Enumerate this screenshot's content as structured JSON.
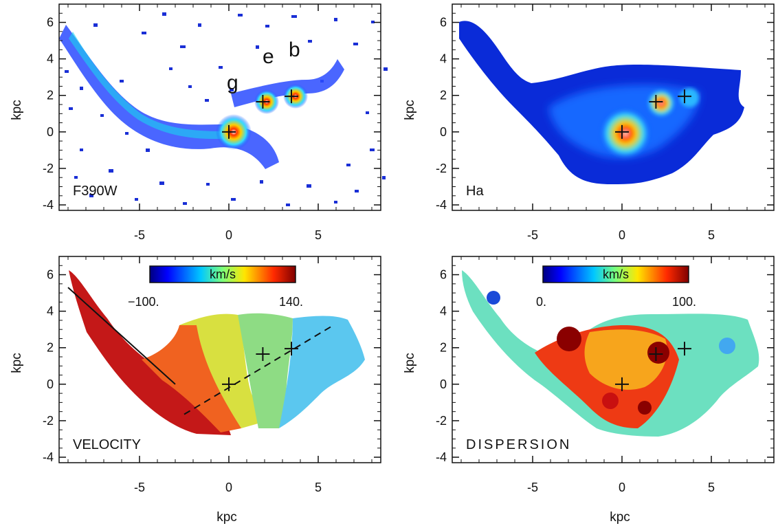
{
  "panels": [
    {
      "id": "f390w",
      "label": "F390W",
      "xlabel": "",
      "ylabel": "kpc",
      "knot_labels": [
        "g",
        "e",
        "b"
      ],
      "colorbar": null
    },
    {
      "id": "ha",
      "label": "Ha",
      "xlabel": "",
      "ylabel": "kpc",
      "knot_labels": [],
      "colorbar": null
    },
    {
      "id": "velocity",
      "label": "VELOCITY",
      "xlabel": "kpc",
      "ylabel": "kpc",
      "knot_labels": [],
      "colorbar": {
        "title": "km/s",
        "min_label": "−100.",
        "max_label": "140.",
        "min": -100,
        "max": 140,
        "scheme": "jet"
      }
    },
    {
      "id": "dispersion",
      "label": "DISPERSION",
      "xlabel": "kpc",
      "ylabel": "kpc",
      "knot_labels": [],
      "colorbar": {
        "title": "km/s",
        "min_label": "0.",
        "max_label": "100.",
        "min": 0,
        "max": 100,
        "scheme": "jet"
      }
    }
  ],
  "axes": {
    "xlim": [
      -9.5,
      8.5
    ],
    "ylim": [
      -4.3,
      7.0
    ],
    "xticks": [
      -5,
      0,
      5
    ],
    "xtick_labels": [
      "-5",
      "0",
      "5"
    ],
    "yticks": [
      -4,
      -2,
      0,
      2,
      4,
      6
    ],
    "ytick_labels": [
      "-4",
      "-2",
      "0",
      "2",
      "4",
      "6"
    ]
  },
  "markers": [
    {
      "x": 0.0,
      "y": 0.0
    },
    {
      "x": 1.9,
      "y": 1.65
    },
    {
      "x": 3.5,
      "y": 1.95
    }
  ],
  "kinematic_axes": {
    "solid": {
      "from": [
        -9.0,
        5.3
      ],
      "to": [
        -3.0,
        0.0
      ]
    },
    "dashed": {
      "from": [
        -2.5,
        -1.65
      ],
      "to": [
        5.8,
        3.2
      ]
    }
  },
  "colors": {
    "outside": "#ffffff",
    "frame": "#111111"
  }
}
